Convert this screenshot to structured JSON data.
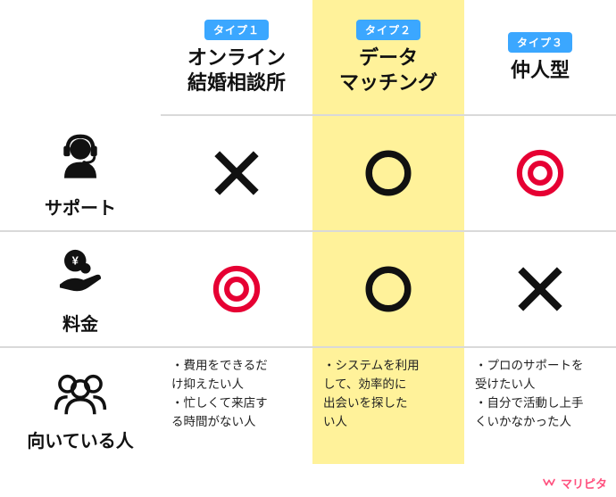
{
  "colors": {
    "badge_bg": "#3ba7ff",
    "border": "#d9d9d9",
    "highlight_bg": "#fff29a",
    "mark_black": "#111111",
    "mark_red": "#e60033",
    "brand_pink": "#ff4f7d"
  },
  "columns": [
    {
      "badge": "タイプ１",
      "title": "オンライン\n結婚相談所"
    },
    {
      "badge": "タイプ２",
      "title": "データ\nマッチング",
      "highlight": true
    },
    {
      "badge": "タイプ３",
      "title": "仲人型"
    }
  ],
  "rows": [
    {
      "icon": "support",
      "label": "サポート",
      "marks": [
        "cross",
        "circle",
        "double"
      ]
    },
    {
      "icon": "price",
      "label": "料金",
      "marks": [
        "double",
        "circle",
        "cross"
      ]
    },
    {
      "icon": "people",
      "label": "向いている人",
      "texts": [
        "・費用をできるだ\nけ抑えたい人\n・忙しくて来店す\nる時間がない人",
        "・システムを利用\nして、効率的に\n出会いを探した\nい人",
        "・プロのサポートを\n受けたい人\n・自分で活動し上手\nくいかなかった人"
      ]
    }
  ],
  "footer_brand": "マリピタ"
}
